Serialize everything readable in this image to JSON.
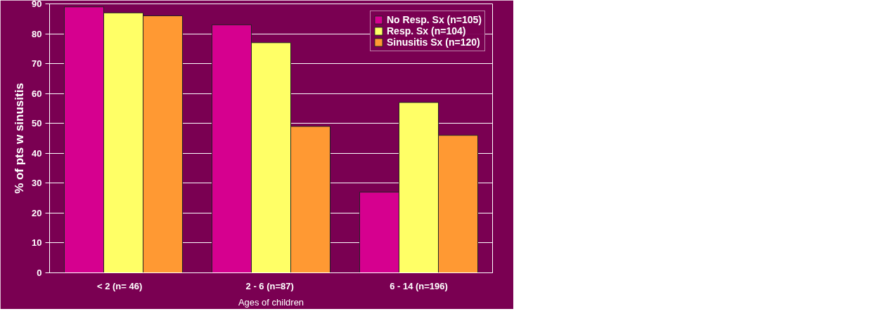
{
  "chart_data": {
    "type": "bar",
    "xlabel": "Ages of children",
    "ylabel": "% of pts w sinusitis",
    "categories": [
      "< 2    (n= 46)",
      "2 - 6  (n=87)",
      "6 - 14 (n=196)"
    ],
    "series": [
      {
        "name": "No Resp. Sx (n=105)",
        "color": "#d6008f",
        "values": [
          89,
          83,
          27
        ]
      },
      {
        "name": "Resp. Sx (n=104)",
        "color": "#ffff66",
        "values": [
          87,
          77,
          57
        ]
      },
      {
        "name": "Sinusitis Sx (n=120)",
        "color": "#ff9933",
        "values": [
          86,
          49,
          46
        ]
      }
    ],
    "ylim": [
      0,
      90
    ],
    "yticks": [
      0,
      10,
      20,
      30,
      40,
      50,
      60,
      70,
      80,
      90
    ],
    "grid": "y",
    "legend": "top right"
  }
}
